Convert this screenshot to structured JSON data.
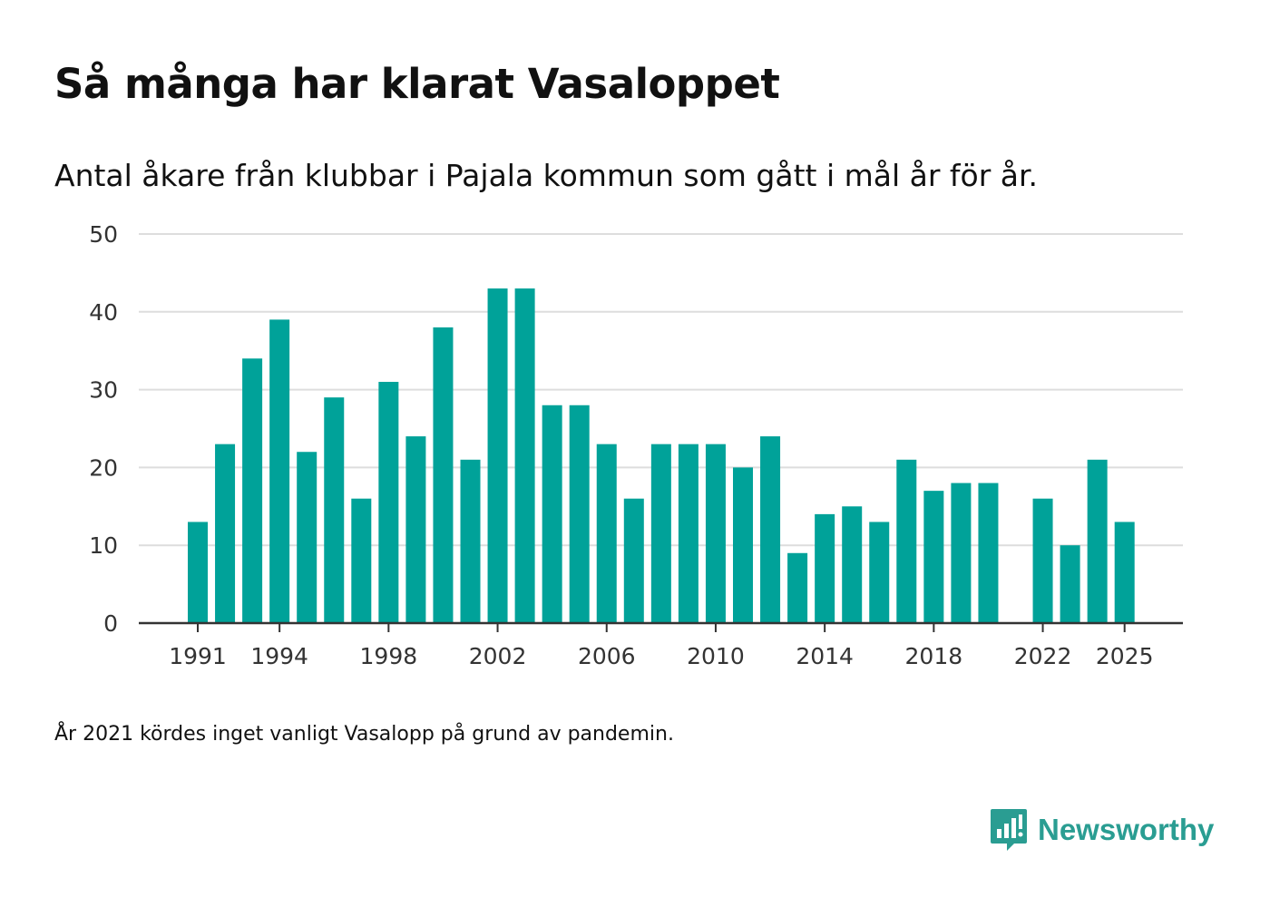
{
  "title": "Så många har klarat Vasaloppet",
  "subtitle": "Antal åkare från klubbar i Pajala kommun som gått i mål år för år.",
  "note": "År 2021 kördes inget vanligt Vasalopp på grund av pandemin.",
  "brand": {
    "name": "Newsworthy",
    "icon": "newsworthy-logo-icon",
    "color": "#2a9d92"
  },
  "colors": {
    "bar": "#00a299",
    "grid": "#dddddd",
    "axis": "#333333"
  },
  "chart_data": {
    "type": "bar",
    "title": "Så många har klarat Vasaloppet",
    "subtitle": "Antal åkare från klubbar i Pajala kommun som gått i mål år för år.",
    "xlabel": "",
    "ylabel": "",
    "ylim": [
      0,
      50
    ],
    "yticks": [
      0,
      10,
      20,
      30,
      40,
      50
    ],
    "xticks": [
      "1991",
      "1994",
      "1998",
      "2002",
      "2006",
      "2010",
      "2014",
      "2018",
      "2022",
      "2025"
    ],
    "grid": true,
    "categories": [
      "1991",
      "1992",
      "1993",
      "1994",
      "1995",
      "1996",
      "1997",
      "1998",
      "1999",
      "2000",
      "2001",
      "2002",
      "2003",
      "2004",
      "2005",
      "2006",
      "2007",
      "2008",
      "2009",
      "2010",
      "2011",
      "2012",
      "2013",
      "2014",
      "2015",
      "2016",
      "2017",
      "2018",
      "2019",
      "2020",
      "2021",
      "2022",
      "2023",
      "2024",
      "2025"
    ],
    "values": [
      13,
      23,
      34,
      39,
      22,
      29,
      16,
      31,
      24,
      38,
      21,
      43,
      43,
      28,
      28,
      23,
      16,
      23,
      23,
      23,
      20,
      24,
      9,
      14,
      15,
      13,
      21,
      17,
      18,
      18,
      null,
      16,
      10,
      21,
      13
    ]
  }
}
